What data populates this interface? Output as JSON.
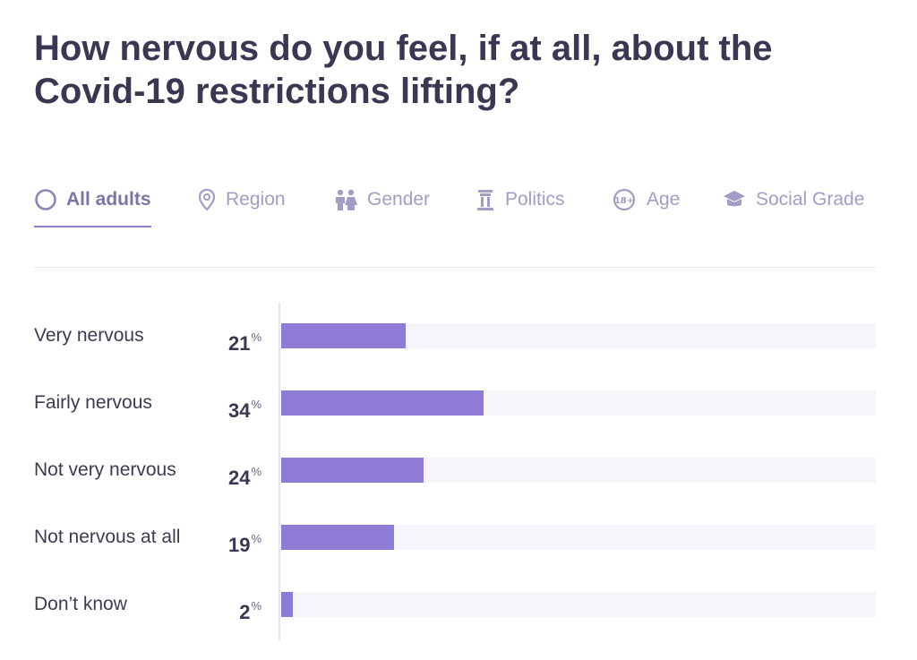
{
  "title": "How nervous do you feel, if at all, about the Covid-19 restrictions lifting?",
  "tabs": [
    {
      "label": "All adults",
      "icon": "circle-icon",
      "active": true
    },
    {
      "label": "Region",
      "icon": "location-pin-icon",
      "active": false
    },
    {
      "label": "Gender",
      "icon": "gender-icon",
      "active": false
    },
    {
      "label": "Politics",
      "icon": "politics-icon",
      "active": false
    },
    {
      "label": "Age",
      "icon": "age-18-icon",
      "active": false
    },
    {
      "label": "Social Grade",
      "icon": "graduation-cap-icon",
      "active": false
    }
  ],
  "colors": {
    "bar": "#8d7bd6",
    "track": "#f6f5fa",
    "title": "#3b3652",
    "tab_inactive": "#a39cc6",
    "tab_active": "#7c74a8"
  },
  "chart_data": {
    "type": "bar",
    "orientation": "horizontal",
    "categories": [
      "Very nervous",
      "Fairly nervous",
      "Not very nervous",
      "Not nervous at all",
      "Don’t know"
    ],
    "values": [
      21,
      34,
      24,
      19,
      2
    ],
    "value_suffix": "%",
    "xlim": [
      0,
      100
    ]
  }
}
